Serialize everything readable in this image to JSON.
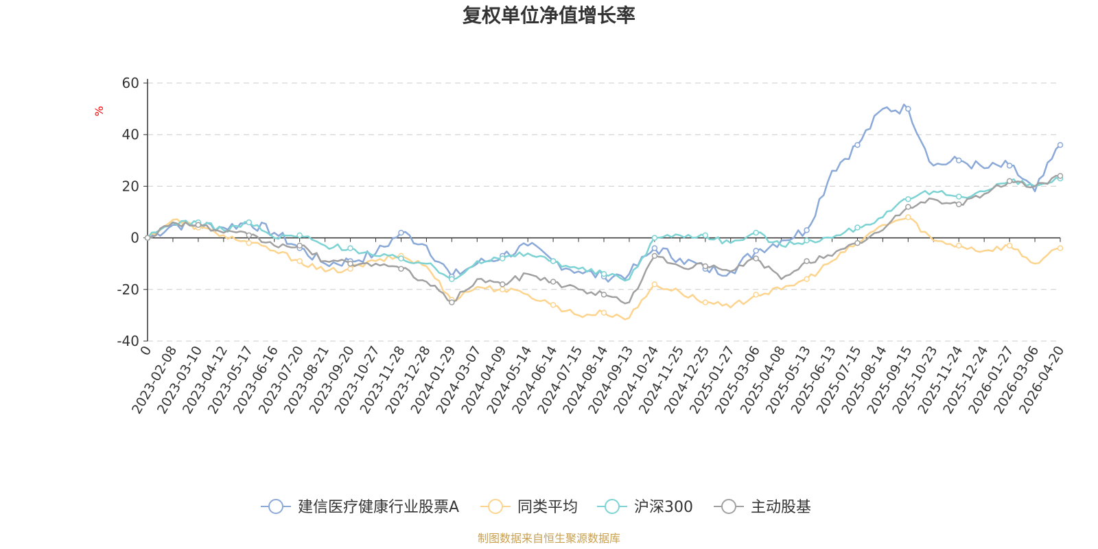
{
  "chart_data": {
    "type": "line",
    "title": "复权单位净值增长率",
    "ylabel": "%",
    "ylim": [
      -40,
      60
    ],
    "yticks": [
      60,
      40,
      20,
      0,
      -20,
      -40
    ],
    "grid": true,
    "legend_position": "bottom-center",
    "categories": [
      "0",
      "2023-02-08",
      "2023-03-10",
      "2023-04-12",
      "2023-05-17",
      "2023-06-16",
      "2023-07-20",
      "2023-08-21",
      "2023-09-20",
      "2023-10-27",
      "2023-11-28",
      "2023-12-28",
      "2024-01-29",
      "2024-03-07",
      "2024-04-09",
      "2024-05-14",
      "2024-06-14",
      "2024-07-15",
      "2024-08-14",
      "2024-09-13",
      "2024-10-24",
      "2024-11-25",
      "2024-12-25",
      "2025-01-27",
      "2025-03-06",
      "2025-04-08",
      "2025-05-13",
      "2025-06-13",
      "2025-07-15",
      "2025-08-14",
      "2025-09-15",
      "2025-10-23",
      "2025-11-24",
      "2025-12-24",
      "2026-01-27",
      "2026-03-06",
      "2026-04-20"
    ],
    "series": [
      {
        "name": "建信医疗健康行业股票A",
        "color": "#8aa8d8",
        "values": [
          0,
          5,
          5,
          4,
          6,
          2,
          -4,
          -10,
          -9,
          -6,
          2,
          -3,
          -15,
          -10,
          -7,
          -3,
          -9,
          -13,
          -15,
          -14,
          -4,
          -8,
          -12,
          -13,
          -5,
          -1,
          3,
          26,
          36,
          50,
          50,
          28,
          30,
          27,
          28,
          18,
          36
        ]
      },
      {
        "name": "同类平均",
        "color": "#fcd48e",
        "values": [
          0,
          7,
          4,
          1,
          -2,
          -5,
          -9,
          -13,
          -12,
          -9,
          -7,
          -11,
          -24,
          -19,
          -20,
          -22,
          -26,
          -30,
          -29,
          -31,
          -18,
          -21,
          -25,
          -27,
          -22,
          -20,
          -16,
          -9,
          -2,
          5,
          8,
          -1,
          -3,
          -5,
          -3,
          -10,
          -4
        ]
      },
      {
        "name": "沪深300",
        "color": "#7dd3d3",
        "values": [
          0,
          6,
          6,
          3,
          6,
          0,
          1,
          -3,
          -4,
          -7,
          -8,
          -10,
          -16,
          -9,
          -8,
          -6,
          -9,
          -12,
          -14,
          -16,
          0,
          1,
          1,
          -2,
          2,
          -3,
          -1,
          0,
          4,
          8,
          15,
          18,
          16,
          18,
          22,
          20,
          23
        ]
      },
      {
        "name": "主动股基",
        "color": "#a0a0a0",
        "values": [
          0,
          6,
          5,
          2,
          1,
          -3,
          -3,
          -9,
          -10,
          -10,
          -12,
          -17,
          -25,
          -16,
          -18,
          -14,
          -17,
          -20,
          -22,
          -25,
          -7,
          -11,
          -11,
          -13,
          -8,
          -16,
          -9,
          -7,
          -2,
          3,
          12,
          15,
          13,
          17,
          22,
          20,
          24
        ]
      }
    ]
  },
  "footer": {
    "source": "制图数据来自恒生聚源数据库"
  }
}
